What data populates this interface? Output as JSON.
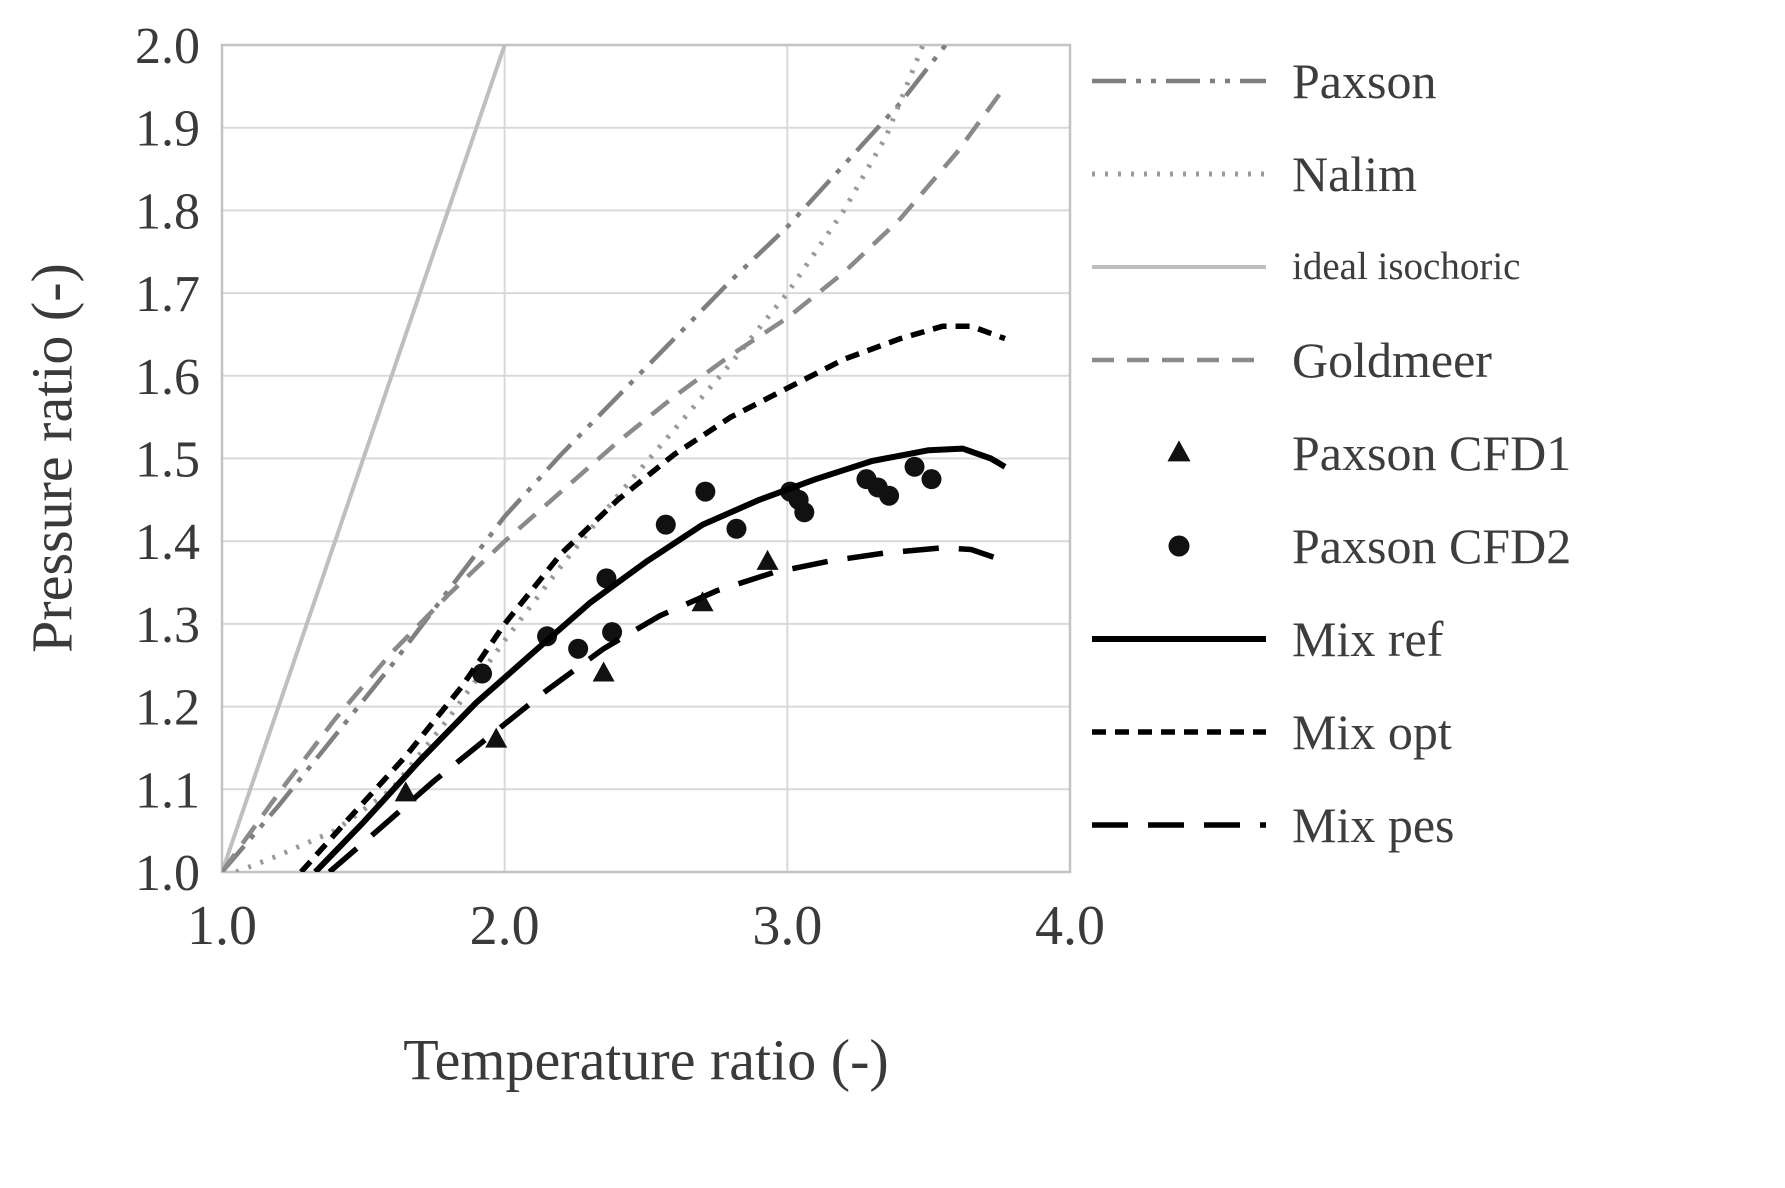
{
  "chart_data": {
    "type": "line",
    "title": "",
    "xlabel": "Temperature ratio (-)",
    "ylabel": "Pressure ratio (-)",
    "xlim": [
      1.0,
      4.0
    ],
    "ylim": [
      1.0,
      2.0
    ],
    "x_ticks": [
      "1.0",
      "2.0",
      "3.0",
      "4.0"
    ],
    "y_ticks": [
      "1.0",
      "1.1",
      "1.2",
      "1.3",
      "1.4",
      "1.5",
      "1.6",
      "1.7",
      "1.8",
      "1.9",
      "2.0"
    ],
    "grid": true,
    "legend_position": "right",
    "grid_color": "#d9d9d9",
    "border_color": "#c3c3c3",
    "series": [
      {
        "name": "Paxson",
        "kind": "line",
        "style": {
          "color": "#7f7f7f",
          "dash": "dashdotdot",
          "width": 4.5,
          "marker": null,
          "small_label": false
        },
        "points": [
          [
            1.0,
            1.0
          ],
          [
            1.2,
            1.08
          ],
          [
            1.4,
            1.165
          ],
          [
            1.6,
            1.25
          ],
          [
            1.8,
            1.34
          ],
          [
            2.0,
            1.43
          ],
          [
            2.2,
            1.505
          ],
          [
            2.4,
            1.575
          ],
          [
            2.6,
            1.645
          ],
          [
            2.8,
            1.715
          ],
          [
            3.0,
            1.78
          ],
          [
            3.2,
            1.855
          ],
          [
            3.4,
            1.93
          ],
          [
            3.56,
            2.0
          ]
        ]
      },
      {
        "name": "Nalim",
        "kind": "line",
        "style": {
          "color": "#9a9a9a",
          "dash": "dotted",
          "width": 5,
          "marker": null,
          "small_label": false
        },
        "points": [
          [
            1.05,
            1.0
          ],
          [
            1.2,
            1.02
          ],
          [
            1.4,
            1.05
          ],
          [
            1.6,
            1.1
          ],
          [
            1.8,
            1.185
          ],
          [
            2.0,
            1.28
          ],
          [
            2.2,
            1.37
          ],
          [
            2.4,
            1.455
          ],
          [
            2.6,
            1.535
          ],
          [
            2.8,
            1.615
          ],
          [
            3.0,
            1.7
          ],
          [
            3.2,
            1.8
          ],
          [
            3.35,
            1.89
          ],
          [
            3.48,
            2.0
          ]
        ]
      },
      {
        "name": "ideal isochoric",
        "kind": "line",
        "style": {
          "color": "#bfbfbf",
          "dash": "solid",
          "width": 4,
          "marker": null,
          "small_label": true
        },
        "points": [
          [
            1.0,
            1.0
          ],
          [
            2.0,
            2.0
          ]
        ]
      },
      {
        "name": "Goldmeer",
        "kind": "line",
        "style": {
          "color": "#8a8a8a",
          "dash": "dashed",
          "width": 4.5,
          "marker": null,
          "small_label": false
        },
        "points": [
          [
            1.0,
            1.0
          ],
          [
            1.2,
            1.095
          ],
          [
            1.4,
            1.185
          ],
          [
            1.6,
            1.265
          ],
          [
            1.8,
            1.335
          ],
          [
            2.0,
            1.4
          ],
          [
            2.2,
            1.46
          ],
          [
            2.4,
            1.52
          ],
          [
            2.6,
            1.575
          ],
          [
            2.8,
            1.625
          ],
          [
            3.0,
            1.67
          ],
          [
            3.2,
            1.725
          ],
          [
            3.4,
            1.79
          ],
          [
            3.6,
            1.87
          ],
          [
            3.75,
            1.94
          ]
        ]
      },
      {
        "name": "Paxson CFD1",
        "kind": "scatter",
        "style": {
          "color": "#111111",
          "dash": "solid",
          "width": 0,
          "marker": "triangle",
          "small_label": false
        },
        "points": [
          [
            1.65,
            1.095
          ],
          [
            1.97,
            1.16
          ],
          [
            2.35,
            1.24
          ],
          [
            2.7,
            1.325
          ],
          [
            2.93,
            1.375
          ]
        ]
      },
      {
        "name": "Paxson CFD2",
        "kind": "scatter",
        "style": {
          "color": "#111111",
          "dash": "solid",
          "width": 0,
          "marker": "circle",
          "small_label": false
        },
        "points": [
          [
            1.92,
            1.24
          ],
          [
            2.15,
            1.285
          ],
          [
            2.26,
            1.27
          ],
          [
            2.38,
            1.29
          ],
          [
            2.36,
            1.355
          ],
          [
            2.57,
            1.42
          ],
          [
            2.71,
            1.46
          ],
          [
            2.82,
            1.415
          ],
          [
            3.01,
            1.46
          ],
          [
            3.04,
            1.45
          ],
          [
            3.06,
            1.435
          ],
          [
            3.28,
            1.475
          ],
          [
            3.32,
            1.465
          ],
          [
            3.36,
            1.455
          ],
          [
            3.45,
            1.49
          ],
          [
            3.51,
            1.475
          ]
        ]
      },
      {
        "name": "Mix ref",
        "kind": "line",
        "style": {
          "color": "#000000",
          "dash": "solid",
          "width": 6,
          "marker": null,
          "small_label": false
        },
        "points": [
          [
            1.33,
            1.0
          ],
          [
            1.5,
            1.06
          ],
          [
            1.7,
            1.135
          ],
          [
            1.9,
            1.205
          ],
          [
            2.1,
            1.265
          ],
          [
            2.3,
            1.325
          ],
          [
            2.5,
            1.375
          ],
          [
            2.7,
            1.42
          ],
          [
            2.9,
            1.45
          ],
          [
            3.1,
            1.475
          ],
          [
            3.3,
            1.497
          ],
          [
            3.5,
            1.51
          ],
          [
            3.62,
            1.512
          ],
          [
            3.72,
            1.5
          ],
          [
            3.77,
            1.49
          ]
        ]
      },
      {
        "name": "Mix opt",
        "kind": "line",
        "style": {
          "color": "#000000",
          "dash": "shortdash",
          "width": 5.5,
          "marker": null,
          "small_label": false
        },
        "points": [
          [
            1.28,
            1.0
          ],
          [
            1.45,
            1.065
          ],
          [
            1.65,
            1.14
          ],
          [
            1.85,
            1.225
          ],
          [
            2.0,
            1.3
          ],
          [
            2.2,
            1.385
          ],
          [
            2.4,
            1.45
          ],
          [
            2.6,
            1.505
          ],
          [
            2.8,
            1.55
          ],
          [
            3.0,
            1.585
          ],
          [
            3.2,
            1.62
          ],
          [
            3.4,
            1.645
          ],
          [
            3.55,
            1.66
          ],
          [
            3.65,
            1.66
          ],
          [
            3.77,
            1.645
          ]
        ]
      },
      {
        "name": "Mix pes",
        "kind": "line",
        "style": {
          "color": "#000000",
          "dash": "longdash",
          "width": 5.5,
          "marker": null,
          "small_label": false
        },
        "points": [
          [
            1.38,
            1.0
          ],
          [
            1.55,
            1.05
          ],
          [
            1.75,
            1.11
          ],
          [
            1.95,
            1.165
          ],
          [
            2.15,
            1.22
          ],
          [
            2.35,
            1.27
          ],
          [
            2.55,
            1.31
          ],
          [
            2.75,
            1.34
          ],
          [
            2.95,
            1.362
          ],
          [
            3.15,
            1.376
          ],
          [
            3.35,
            1.386
          ],
          [
            3.55,
            1.392
          ],
          [
            3.65,
            1.39
          ],
          [
            3.77,
            1.376
          ]
        ]
      }
    ]
  }
}
